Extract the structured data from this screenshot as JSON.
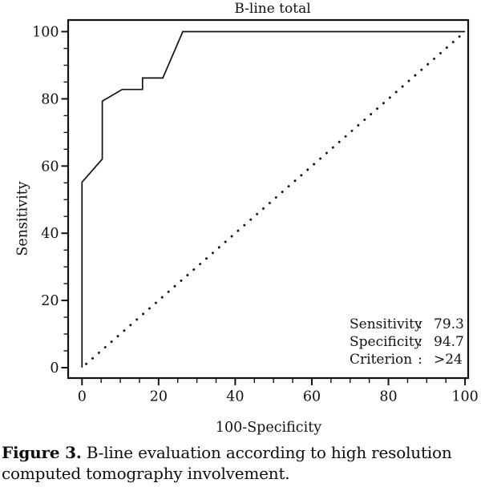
{
  "figure": {
    "caption_label": "Figure 3.",
    "caption_text": " B-line evaluation according to high resolution computed tomography involvement."
  },
  "chart_data": {
    "type": "line",
    "title": "B-line total",
    "xlabel": "100-Specificity",
    "ylabel": "Sensitivity",
    "xlim": [
      0,
      100
    ],
    "ylim": [
      0,
      100
    ],
    "x_ticks": [
      0,
      20,
      40,
      60,
      80,
      100
    ],
    "y_ticks": [
      0,
      20,
      40,
      60,
      80,
      100
    ],
    "minor_tick_step": 5,
    "grid": false,
    "legend": "none",
    "series": [
      {
        "name": "roc-curve",
        "style": "solid",
        "points": [
          [
            0,
            0
          ],
          [
            0,
            55.2
          ],
          [
            5.3,
            62.1
          ],
          [
            5.3,
            79.3
          ],
          [
            10.5,
            82.8
          ],
          [
            15.8,
            82.8
          ],
          [
            15.8,
            86.2
          ],
          [
            21.1,
            86.2
          ],
          [
            26.3,
            100
          ],
          [
            100,
            100
          ]
        ]
      },
      {
        "name": "reference-diagonal",
        "style": "dotted",
        "points": [
          [
            0,
            0
          ],
          [
            100,
            100
          ]
        ]
      }
    ],
    "annotation": {
      "rows": [
        {
          "label": "Sensitivity",
          "colon": ":",
          "value": "79.3"
        },
        {
          "label": "Specificity",
          "colon": ":",
          "value": "94.7"
        },
        {
          "label": "Criterion",
          "colon": ":",
          "value": ">24"
        }
      ]
    },
    "colors": {
      "line": "#111111",
      "text": "#111111",
      "background": "#ffffff"
    }
  }
}
